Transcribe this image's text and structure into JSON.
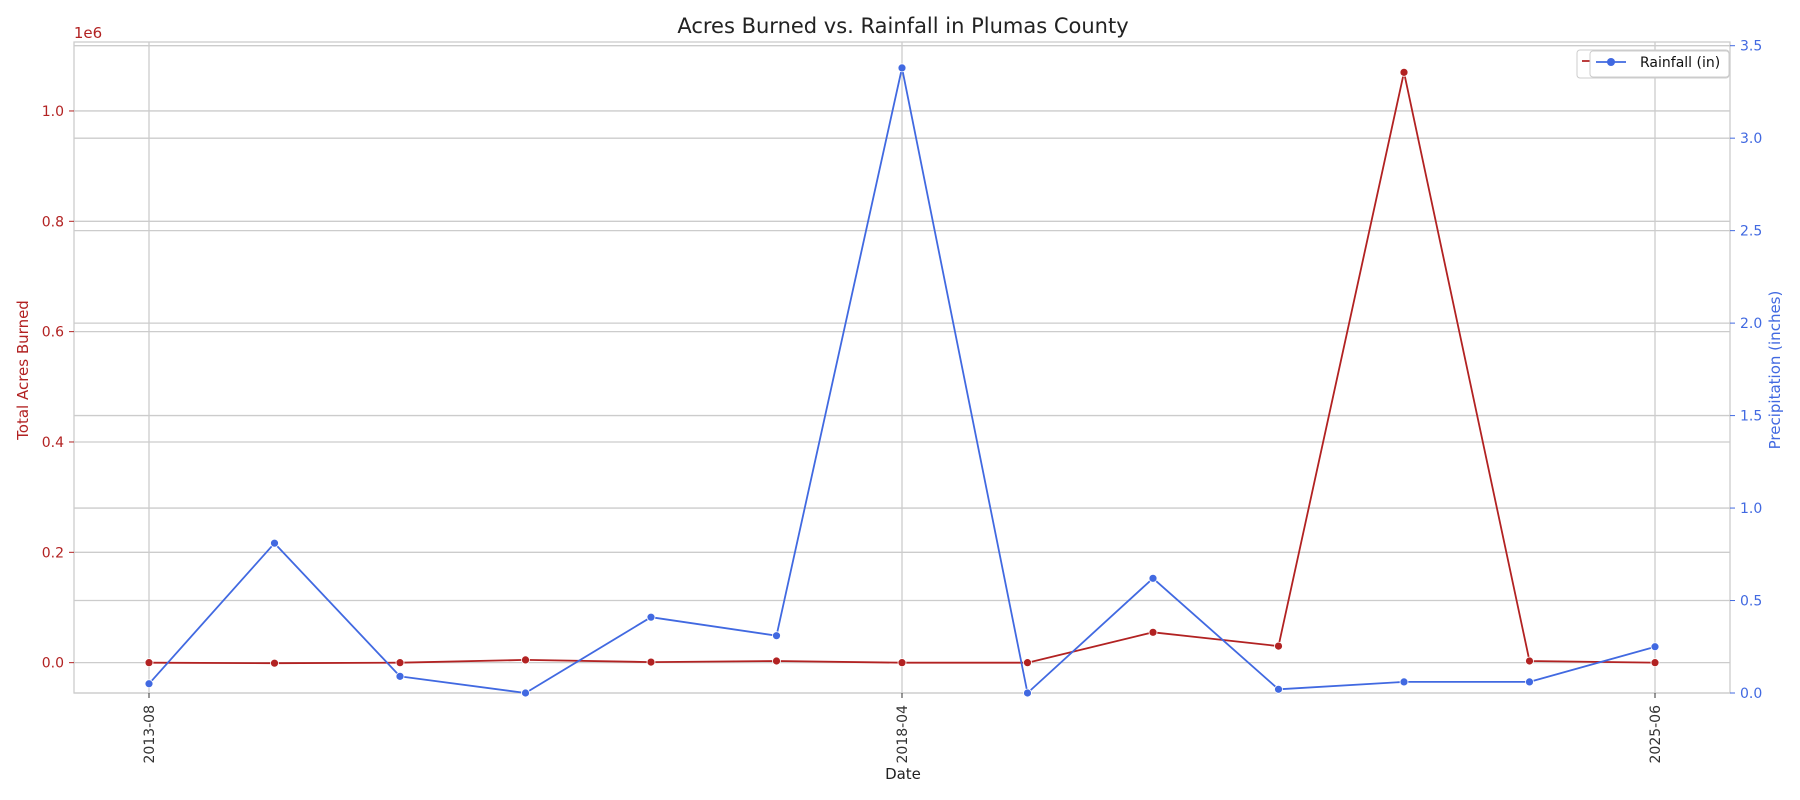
{
  "chart_data": {
    "type": "line",
    "title": "Acres Burned vs. Rainfall in Plumas County",
    "xlabel": "Date",
    "ylabel_left": "Total Acres Burned",
    "ylabel_right": "Precipitation (inches)",
    "left_axis_offset_label": "1e6",
    "x_categories": [
      "2013-08",
      "",
      "",
      "",
      "",
      "",
      "2018-04",
      "",
      "",
      "",
      "",
      "",
      "2025-06"
    ],
    "x_tick_labels": [
      "2013-08",
      "2018-04",
      "2025-06"
    ],
    "x_tick_indices": [
      0,
      6,
      12
    ],
    "left_ylim": [
      -0.055,
      1.125
    ],
    "left_ticks": [
      "0.0",
      "0.2",
      "0.4",
      "0.6",
      "0.8",
      "1.0"
    ],
    "left_tick_values": [
      0.0,
      0.2,
      0.4,
      0.6,
      0.8,
      1.0
    ],
    "right_ylim": [
      0.0,
      3.52
    ],
    "right_ticks": [
      "0.0",
      "0.5",
      "1.0",
      "1.5",
      "2.0",
      "2.5",
      "3.0",
      "3.5"
    ],
    "right_tick_values": [
      0.0,
      0.5,
      1.0,
      1.5,
      2.0,
      2.5,
      3.0,
      3.5
    ],
    "grid": true,
    "legend_position": "top-right",
    "series": [
      {
        "name": "",
        "axis": "left",
        "color": "#b22222",
        "values": [
          0.0,
          -0.001,
          0.0,
          0.005,
          0.001,
          0.003,
          0.0,
          0.0,
          0.055,
          0.03,
          1.07,
          0.003,
          0.0
        ]
      },
      {
        "name": "Rainfall (in)",
        "axis": "right",
        "color": "#4169e1",
        "values": [
          0.05,
          0.81,
          0.09,
          0.0,
          0.41,
          0.31,
          3.38,
          0.0,
          0.62,
          0.02,
          0.06,
          0.06,
          0.25
        ]
      }
    ]
  }
}
